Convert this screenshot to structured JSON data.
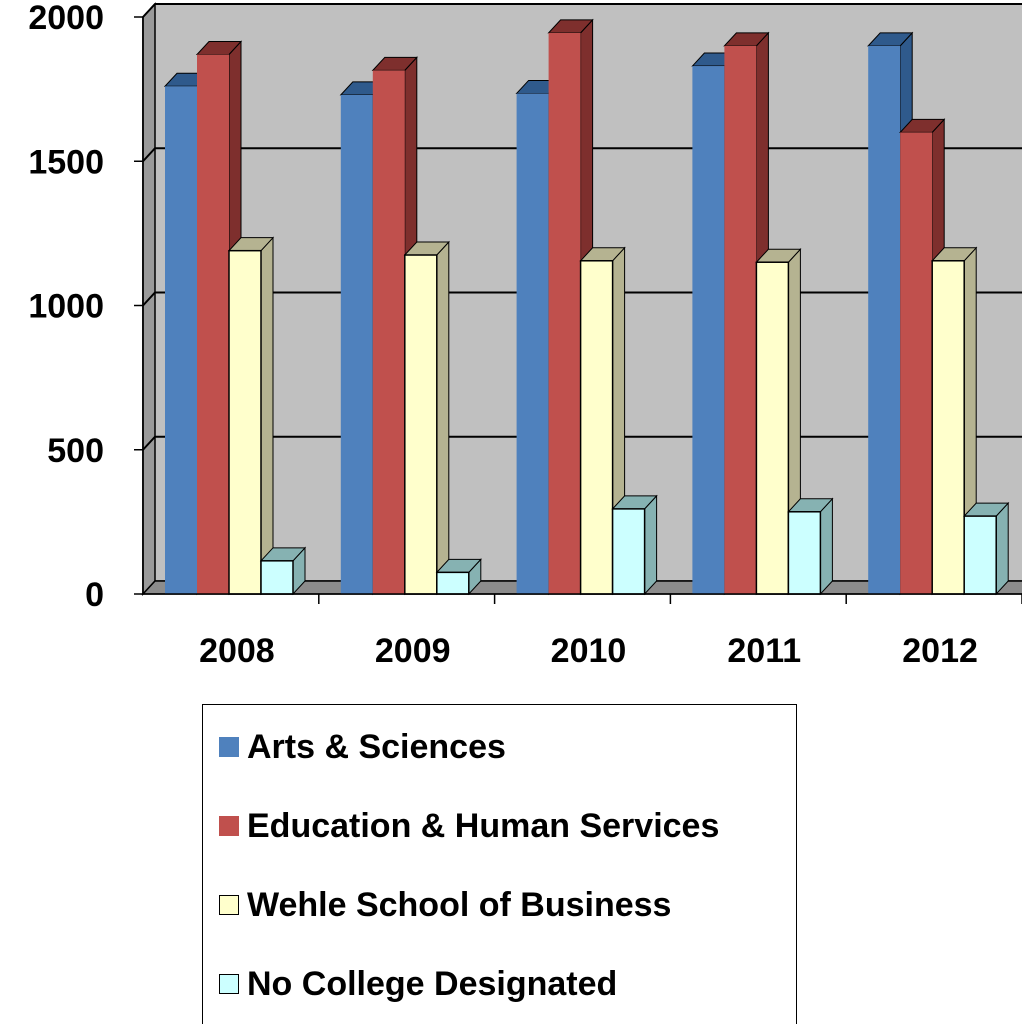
{
  "chart_data": {
    "type": "bar",
    "categories": [
      "2008",
      "2009",
      "2010",
      "2011",
      "2012"
    ],
    "series": [
      {
        "name": "Arts & Sciences",
        "color": "#4f81bd",
        "side": "#2f5a8c",
        "values": [
          1760,
          1730,
          1735,
          1830,
          1900
        ]
      },
      {
        "name": "Education & Human Services",
        "color": "#c0504d",
        "side": "#7e2f2d",
        "values": [
          1870,
          1815,
          1945,
          1900,
          1600
        ]
      },
      {
        "name": "Wehle School of Business",
        "color": "#ffffcc",
        "side": "#b5b391",
        "values": [
          1190,
          1175,
          1155,
          1150,
          1155
        ]
      },
      {
        "name": "No College Designated",
        "color": "#ccffff",
        "side": "#86b2b2",
        "values": [
          115,
          75,
          295,
          285,
          270
        ]
      }
    ],
    "yticks": [
      "0",
      "500",
      "1000",
      "1500",
      "2000"
    ],
    "ylim": [
      0,
      2000
    ],
    "grid": true,
    "wall_color": "#c0c0c0",
    "legend_position": "bottom"
  }
}
